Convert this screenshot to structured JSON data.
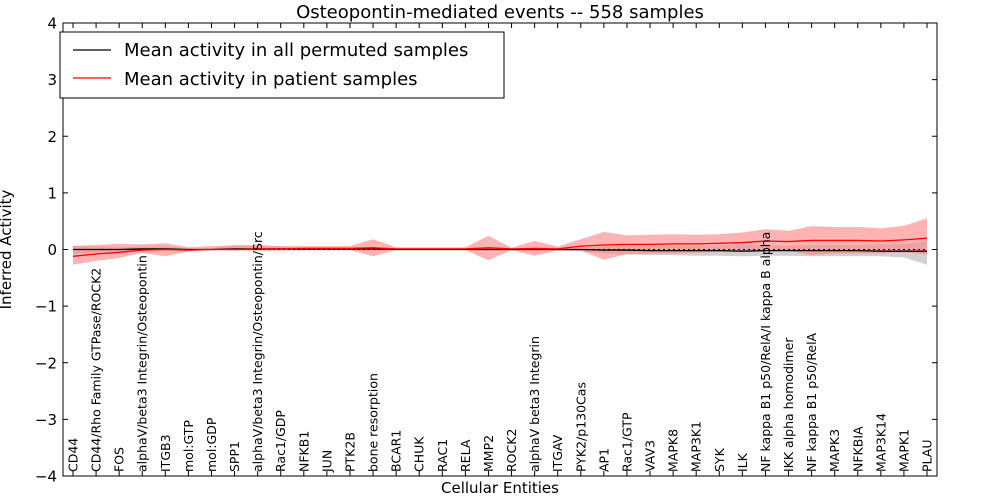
{
  "chart_data": {
    "type": "line",
    "title": "Osteopontin-mediated events -- 558 samples",
    "xlabel": "Cellular Entities",
    "ylabel": "Inferred Activity",
    "ylim": [
      -4,
      4
    ],
    "yticks": [
      -4,
      -3,
      -2,
      -1,
      0,
      1,
      2,
      3,
      4
    ],
    "ytick_labels": [
      "−4",
      "−3",
      "−2",
      "−1",
      "0",
      "1",
      "2",
      "3",
      "4"
    ],
    "grid": false,
    "legend_position": "top-left",
    "categories": [
      "CD44",
      "CD44/Rho Family GTPase/ROCK2",
      "FOS",
      "alphaV/beta3 Integrin/Osteopontin",
      "ITGB3",
      "mol:GTP",
      "mol:GDP",
      "SPP1",
      "alphaV/beta3 Integrin/Osteopontin/Src",
      "Rac1/GDP",
      "NFKB1",
      "JUN",
      "PTK2B",
      "bone resorption",
      "BCAR1",
      "CHUK",
      "RAC1",
      "RELA",
      "MMP2",
      "ROCK2",
      "alphaV beta3 Integrin",
      "ITGAV",
      "PYK2/p130Cas",
      "AP1",
      "Rac1/GTP",
      "VAV3",
      "MAPK8",
      "MAP3K1",
      "SYK",
      "ILK",
      "NF kappa B1 p50/RelA/I kappa B alpha",
      "IKK alpha homodimer",
      "NF kappa B1 p50/RelA",
      "MAPK3",
      "NFKBIA",
      "MAP3K14",
      "MAPK1",
      "PLAU"
    ],
    "series": [
      {
        "name": "Mean activity in all permuted samples",
        "color": "#000000",
        "values": [
          0.0,
          0.0,
          0.0,
          0.01,
          0.01,
          0.0,
          0.0,
          0.01,
          0.01,
          0.01,
          0.01,
          0.01,
          0.01,
          0.01,
          0.0,
          0.0,
          0.0,
          0.0,
          0.0,
          0.0,
          0.0,
          0.0,
          0.0,
          -0.01,
          -0.01,
          -0.02,
          -0.02,
          -0.02,
          -0.02,
          -0.03,
          -0.02,
          -0.02,
          -0.02,
          -0.02,
          -0.02,
          -0.03,
          -0.03,
          -0.03
        ],
        "band_lower": [
          -0.08,
          -0.05,
          -0.03,
          -0.02,
          -0.01,
          -0.01,
          -0.01,
          -0.01,
          -0.01,
          -0.01,
          -0.01,
          -0.01,
          -0.01,
          -0.02,
          -0.01,
          -0.01,
          -0.01,
          -0.01,
          -0.02,
          -0.02,
          -0.02,
          -0.02,
          -0.03,
          -0.07,
          -0.09,
          -0.1,
          -0.1,
          -0.11,
          -0.11,
          -0.12,
          -0.11,
          -0.11,
          -0.12,
          -0.12,
          -0.12,
          -0.12,
          -0.14,
          -0.27
        ],
        "band_upper": [
          0.07,
          0.05,
          0.04,
          0.05,
          0.06,
          0.02,
          0.02,
          0.08,
          0.06,
          0.05,
          0.04,
          0.04,
          0.04,
          0.04,
          0.02,
          0.02,
          0.02,
          0.02,
          0.03,
          0.02,
          0.02,
          0.02,
          0.03,
          0.06,
          0.07,
          0.07,
          0.07,
          0.07,
          0.07,
          0.08,
          0.07,
          0.07,
          0.08,
          0.08,
          0.08,
          0.09,
          0.1,
          0.15
        ]
      },
      {
        "name": "Mean activity in patient samples",
        "color": "#ff0000",
        "band_color": "#ff8080",
        "values": [
          -0.12,
          -0.08,
          -0.05,
          -0.01,
          0.0,
          -0.01,
          0.0,
          0.0,
          0.01,
          0.01,
          0.02,
          0.02,
          0.02,
          0.03,
          0.01,
          0.01,
          0.01,
          0.01,
          0.03,
          0.01,
          0.02,
          0.01,
          0.06,
          0.08,
          0.09,
          0.09,
          0.1,
          0.1,
          0.11,
          0.12,
          0.15,
          0.14,
          0.16,
          0.16,
          0.16,
          0.15,
          0.17,
          0.2
        ],
        "band_lower": [
          -0.27,
          -0.2,
          -0.15,
          -0.06,
          -0.12,
          -0.03,
          -0.01,
          -0.02,
          -0.02,
          -0.02,
          -0.01,
          -0.01,
          -0.01,
          -0.12,
          -0.01,
          -0.01,
          -0.01,
          -0.01,
          -0.19,
          -0.01,
          -0.11,
          -0.02,
          -0.02,
          -0.18,
          -0.08,
          -0.07,
          -0.07,
          -0.06,
          -0.04,
          -0.03,
          0.0,
          -0.02,
          -0.1,
          -0.07,
          -0.07,
          -0.07,
          -0.05,
          -0.09
        ],
        "band_upper": [
          0.06,
          0.08,
          0.1,
          0.09,
          0.11,
          0.04,
          0.06,
          0.07,
          0.08,
          0.06,
          0.06,
          0.06,
          0.06,
          0.18,
          0.04,
          0.04,
          0.04,
          0.04,
          0.24,
          0.03,
          0.15,
          0.05,
          0.18,
          0.31,
          0.25,
          0.26,
          0.27,
          0.26,
          0.27,
          0.3,
          0.36,
          0.33,
          0.41,
          0.4,
          0.4,
          0.37,
          0.42,
          0.55
        ]
      }
    ]
  }
}
